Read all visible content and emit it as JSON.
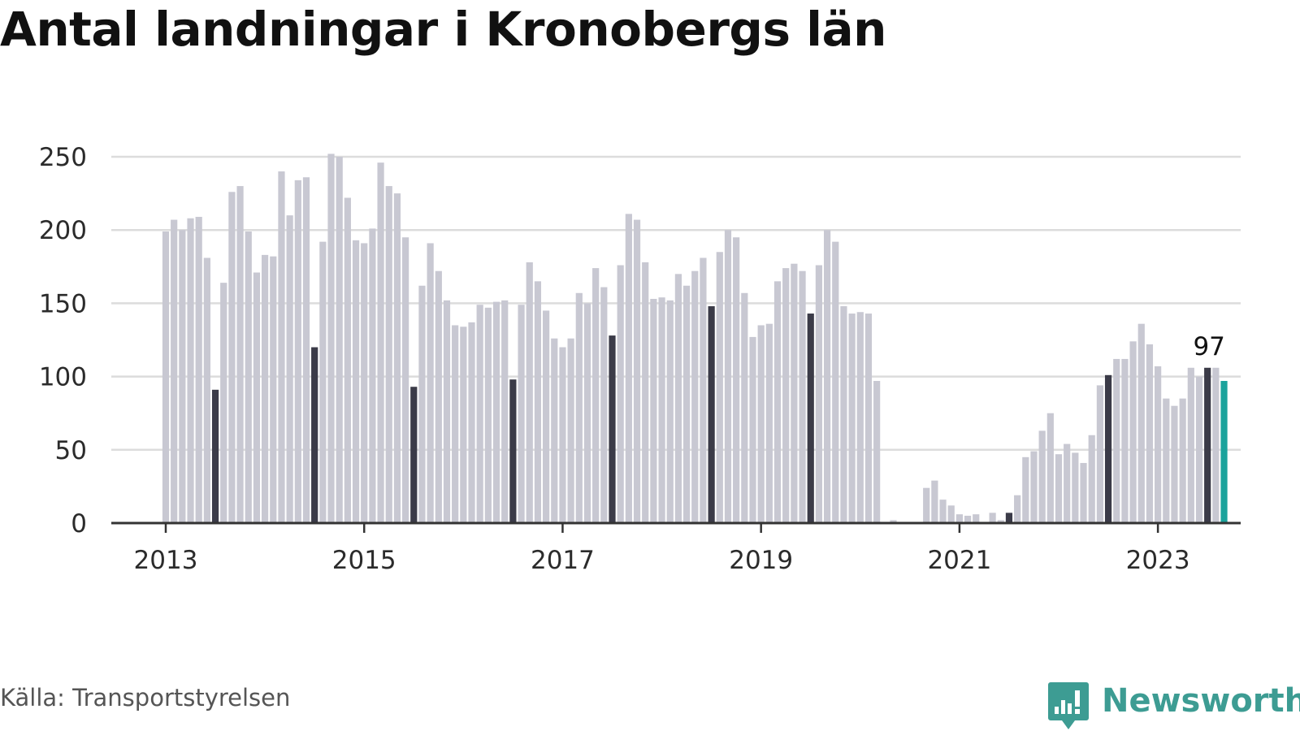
{
  "title": "Antal landningar i Kronobergs län",
  "source": "Källa: Transportstyrelsen",
  "brand": {
    "name": "Newsworthy",
    "icon": "newsworthy-logo-icon",
    "color": "#3d9c93"
  },
  "colors": {
    "bar_default": "#c8c8d2",
    "bar_july": "#3b3b48",
    "bar_latest": "#1ba39c",
    "grid": "#dcdcdc",
    "axis": "#333333"
  },
  "chart_data": {
    "type": "bar",
    "title": "Antal landningar i Kronobergs län",
    "xlabel": "",
    "ylabel": "",
    "ylim": [
      0,
      250
    ],
    "yticks": [
      0,
      50,
      100,
      150,
      200,
      250
    ],
    "xticks": [
      "2013",
      "2015",
      "2017",
      "2019",
      "2021",
      "2023"
    ],
    "grid": true,
    "legend": "none",
    "highlight": "July of each year shown in dark; latest month shown in teal",
    "annotations": [
      {
        "text": "97",
        "month": "2023-07"
      }
    ],
    "series": [
      {
        "start": "2013-01",
        "end": "2023-07",
        "values": [
          199,
          207,
          200,
          208,
          209,
          181,
          91,
          164,
          226,
          230,
          199,
          171,
          183,
          182,
          240,
          210,
          234,
          236,
          120,
          192,
          252,
          250,
          222,
          193,
          191,
          201,
          246,
          230,
          225,
          195,
          93,
          162,
          191,
          172,
          152,
          135,
          134,
          137,
          149,
          147,
          151,
          152,
          98,
          149,
          178,
          165,
          145,
          126,
          120,
          126,
          157,
          150,
          174,
          161,
          128,
          176,
          211,
          207,
          178,
          153,
          154,
          152,
          170,
          162,
          172,
          181,
          148,
          185,
          200,
          195,
          157,
          127,
          135,
          136,
          165,
          174,
          177,
          172,
          143,
          176,
          200,
          192,
          148,
          143,
          144,
          143,
          97,
          0,
          2,
          0,
          0,
          0,
          24,
          29,
          16,
          12,
          6,
          5,
          6,
          0,
          7,
          2,
          7,
          19,
          45,
          49,
          63,
          75,
          47,
          54,
          48,
          41,
          60,
          94,
          101,
          112,
          112,
          124,
          136,
          122,
          107,
          85,
          80,
          85,
          106,
          100,
          106,
          106,
          97
        ]
      }
    ]
  }
}
